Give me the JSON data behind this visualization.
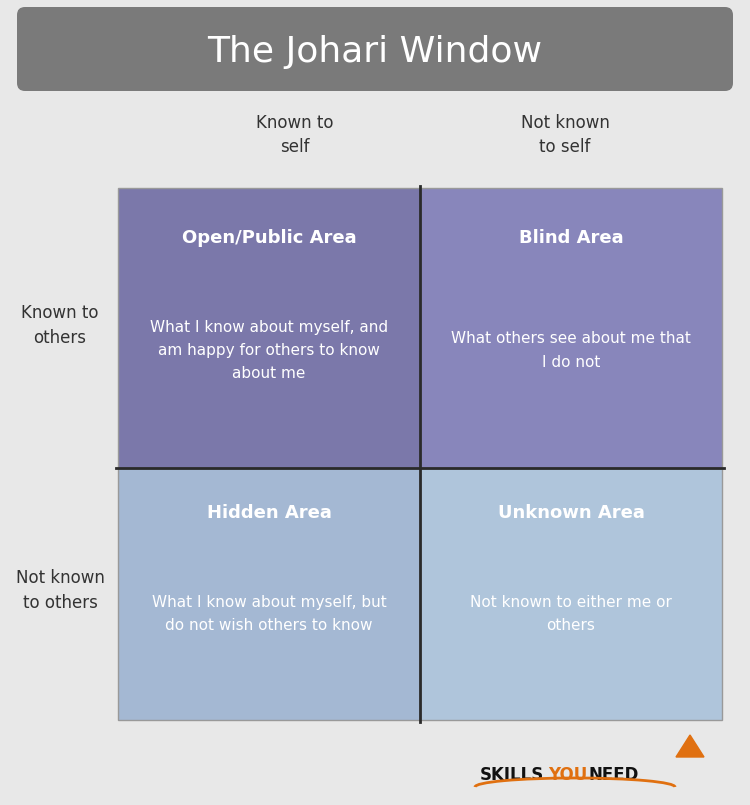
{
  "title": "The Johari Window",
  "background_color": "#e8e8e8",
  "title_bg_color": "#7a7a7a",
  "title_text_color": "#ffffff",
  "title_fontsize": 26,
  "col_headers": [
    "Known to\nself",
    "Not known\nto self"
  ],
  "row_headers": [
    "Known to\nothers",
    "Not known\nto others"
  ],
  "header_fontsize": 12,
  "header_color": "#333333",
  "quadrants": [
    {
      "title": "Open/Public Area",
      "body": "What I know about myself, and\nam happy for others to know\nabout me",
      "color": "#7b78aa",
      "row": 0,
      "col": 0
    },
    {
      "title": "Blind Area",
      "body": "What others see about me that\nI do not",
      "color": "#8886bb",
      "row": 0,
      "col": 1
    },
    {
      "title": "Hidden Area",
      "body": "What I know about myself, but\ndo not wish others to know",
      "color": "#a4b8d3",
      "row": 1,
      "col": 0
    },
    {
      "title": "Unknown Area",
      "body": "Not known to either me or\nothers",
      "color": "#afc5db",
      "row": 1,
      "col": 1
    }
  ],
  "quad_title_fontsize": 13,
  "quad_body_fontsize": 11,
  "quad_text_color": "#ffffff",
  "axis_line_color": "#2a2a2a",
  "logo_skills_color": "#111111",
  "logo_you_color": "#e07010",
  "logo_need_color": "#111111"
}
